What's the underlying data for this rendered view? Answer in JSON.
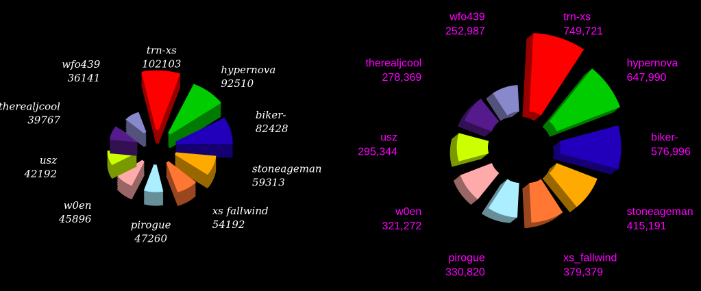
{
  "chart_data": [
    {
      "type": "polar_area",
      "categories": [
        "trn-xs",
        "hypernova",
        "biker-",
        "stoneageman",
        "xs fallwind",
        "pirogue",
        "w0en",
        "usz",
        "therealjcool",
        "wfo439"
      ],
      "values": [
        102103,
        92510,
        82428,
        59313,
        54192,
        47260,
        45896,
        42192,
        39767,
        36141
      ],
      "colors": [
        "#ff0000",
        "#00cc00",
        "#2200bb",
        "#ffaa00",
        "#ff7733",
        "#aaeeff",
        "#ffaaaa",
        "#ccff00",
        "#551a8b",
        "#8888cc"
      ]
    },
    {
      "type": "polar_area",
      "categories": [
        "trn-xs",
        "hypernova",
        "biker-",
        "stoneageman",
        "xs_fallwind",
        "pirogue",
        "w0en",
        "usz",
        "therealjcool",
        "wfo439"
      ],
      "values": [
        749721,
        647990,
        576996,
        415191,
        379379,
        330820,
        321272,
        295344,
        278369,
        252987
      ],
      "value_labels": [
        "749,721",
        "647,990",
        "576,996",
        "415,191",
        "379,379",
        "330,820",
        "321,272",
        "295,344",
        "278,369",
        "252,987"
      ],
      "colors": [
        "#ff0000",
        "#00cc00",
        "#2200bb",
        "#ffaa00",
        "#ff7733",
        "#aaeeff",
        "#ffaaaa",
        "#ccff00",
        "#551a8b",
        "#8888cc"
      ]
    }
  ]
}
